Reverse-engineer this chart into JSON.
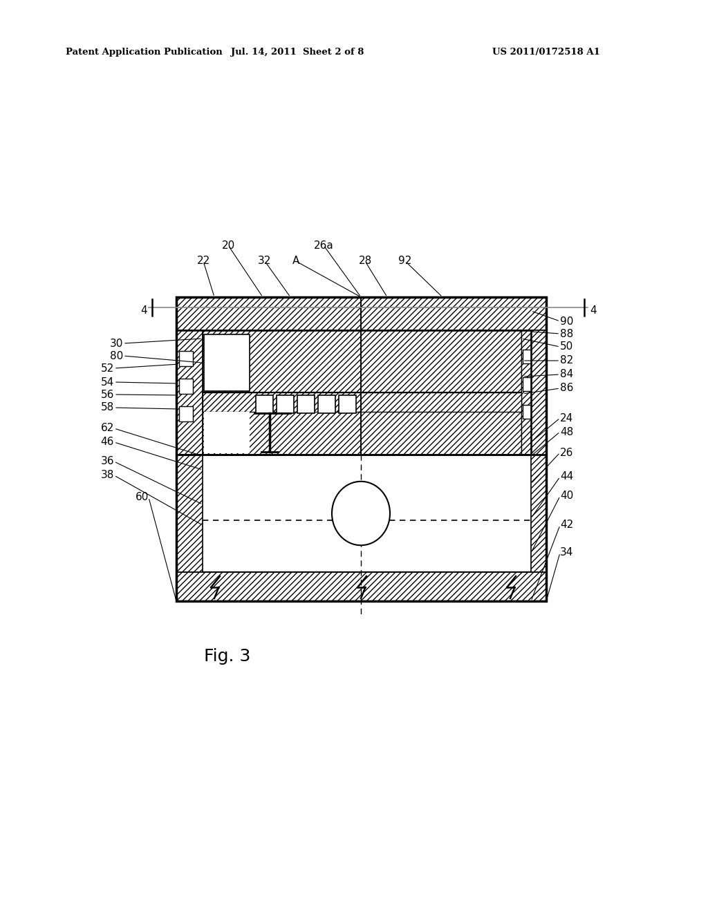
{
  "background_color": "#ffffff",
  "header_left": "Patent Application Publication",
  "header_center": "Jul. 14, 2011  Sheet 2 of 8",
  "header_right": "US 2011/0172518 A1",
  "fig_label": "Fig. 3"
}
